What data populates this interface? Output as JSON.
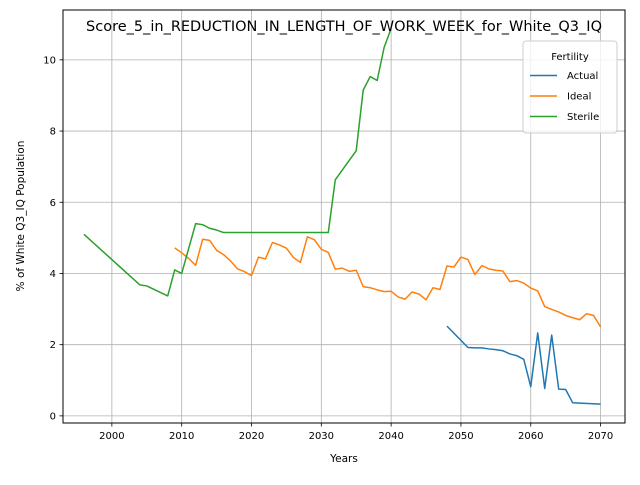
{
  "chart_data": {
    "type": "line",
    "title": "Score_5_in_REDUCTION_IN_LENGTH_OF_WORK_WEEK_for_White_Q3_IQ",
    "xlabel": "Years",
    "ylabel": "% of White Q3_IQ Population",
    "xlim": [
      1993,
      2073.5
    ],
    "ylim": [
      -0.2,
      11.4
    ],
    "xticks": [
      2000,
      2010,
      2020,
      2030,
      2040,
      2050,
      2060,
      2070
    ],
    "yticks": [
      0,
      2,
      4,
      6,
      8,
      10
    ],
    "grid": true,
    "legend": {
      "title": "Fertility",
      "placement": "top-right"
    },
    "series": [
      {
        "name": "Actual",
        "color": "#1f77b4",
        "points": [
          [
            2048,
            2.52
          ],
          [
            2049,
            2.32
          ],
          [
            2050,
            2.12
          ],
          [
            2051,
            1.92
          ],
          [
            2052,
            1.91
          ],
          [
            2053,
            1.91
          ],
          [
            2054,
            1.88
          ],
          [
            2055,
            1.86
          ],
          [
            2056,
            1.83
          ],
          [
            2057,
            1.74
          ],
          [
            2058,
            1.69
          ],
          [
            2059,
            1.59
          ],
          [
            2060,
            0.82
          ],
          [
            2061,
            2.33
          ],
          [
            2062,
            0.77
          ],
          [
            2063,
            2.27
          ],
          [
            2064,
            0.75
          ],
          [
            2065,
            0.74
          ],
          [
            2066,
            0.37
          ],
          [
            2070,
            0.33
          ]
        ]
      },
      {
        "name": "Ideal",
        "color": "#ff7f0e",
        "points": [
          [
            2009,
            4.72
          ],
          [
            2010,
            4.58
          ],
          [
            2011,
            4.42
          ],
          [
            2012,
            4.23
          ],
          [
            2013,
            4.96
          ],
          [
            2014,
            4.93
          ],
          [
            2015,
            4.65
          ],
          [
            2016,
            4.53
          ],
          [
            2017,
            4.35
          ],
          [
            2018,
            4.13
          ],
          [
            2019,
            4.05
          ],
          [
            2020,
            3.94
          ],
          [
            2021,
            4.46
          ],
          [
            2022,
            4.41
          ],
          [
            2023,
            4.87
          ],
          [
            2024,
            4.8
          ],
          [
            2025,
            4.71
          ],
          [
            2026,
            4.45
          ],
          [
            2027,
            4.31
          ],
          [
            2028,
            5.03
          ],
          [
            2029,
            4.95
          ],
          [
            2030,
            4.68
          ],
          [
            2031,
            4.59
          ],
          [
            2032,
            4.12
          ],
          [
            2033,
            4.15
          ],
          [
            2034,
            4.06
          ],
          [
            2035,
            4.09
          ],
          [
            2036,
            3.63
          ],
          [
            2037,
            3.6
          ],
          [
            2038,
            3.54
          ],
          [
            2039,
            3.49
          ],
          [
            2040,
            3.5
          ],
          [
            2041,
            3.34
          ],
          [
            2042,
            3.28
          ],
          [
            2043,
            3.48
          ],
          [
            2044,
            3.42
          ],
          [
            2045,
            3.26
          ],
          [
            2046,
            3.6
          ],
          [
            2047,
            3.55
          ],
          [
            2048,
            4.21
          ],
          [
            2049,
            4.18
          ],
          [
            2050,
            4.46
          ],
          [
            2051,
            4.39
          ],
          [
            2052,
            3.97
          ],
          [
            2053,
            4.22
          ],
          [
            2054,
            4.13
          ],
          [
            2055,
            4.09
          ],
          [
            2056,
            4.07
          ],
          [
            2057,
            3.77
          ],
          [
            2058,
            3.8
          ],
          [
            2059,
            3.73
          ],
          [
            2060,
            3.59
          ],
          [
            2061,
            3.51
          ],
          [
            2062,
            3.07
          ],
          [
            2063,
            2.99
          ],
          [
            2064,
            2.92
          ],
          [
            2065,
            2.82
          ],
          [
            2066,
            2.76
          ],
          [
            2067,
            2.7
          ],
          [
            2068,
            2.87
          ],
          [
            2069,
            2.82
          ],
          [
            2070,
            2.5
          ]
        ]
      },
      {
        "name": "Sterile",
        "color": "#2ca02c",
        "points": [
          [
            1996,
            5.1
          ],
          [
            2004,
            3.68
          ],
          [
            2005,
            3.65
          ],
          [
            2008,
            3.37
          ],
          [
            2009,
            4.1
          ],
          [
            2010,
            4.0
          ],
          [
            2012,
            5.4
          ],
          [
            2013,
            5.37
          ],
          [
            2014,
            5.27
          ],
          [
            2015,
            5.22
          ],
          [
            2016,
            5.15
          ],
          [
            2031,
            5.15
          ],
          [
            2032,
            6.63
          ],
          [
            2035,
            7.45
          ],
          [
            2036,
            9.15
          ],
          [
            2037,
            9.53
          ],
          [
            2038,
            9.42
          ],
          [
            2039,
            10.35
          ],
          [
            2040,
            10.88
          ]
        ]
      }
    ]
  }
}
